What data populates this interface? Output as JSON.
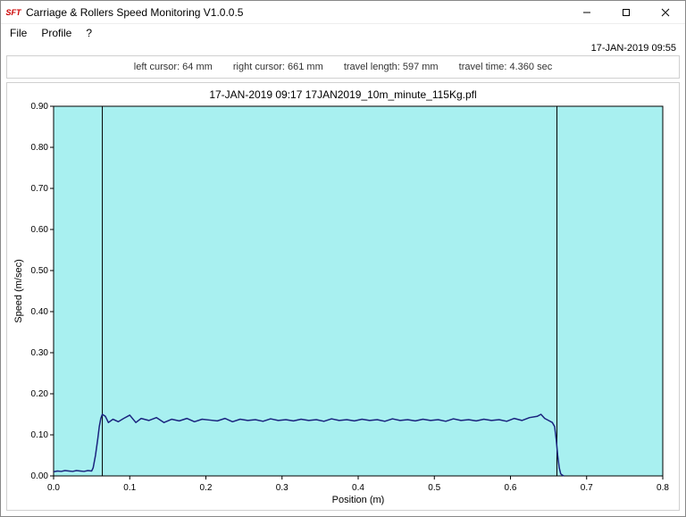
{
  "window": {
    "title": "Carriage & Rollers Speed Monitoring V1.0.0.5",
    "icon_text": "SFT"
  },
  "menu": {
    "file": "File",
    "profile": "Profile",
    "help": "?"
  },
  "status": {
    "datetime": "17-JAN-2019 09:55"
  },
  "info": {
    "left_cursor": "left cursor: 64 mm",
    "right_cursor": "right cursor: 661 mm",
    "travel_length": "travel length: 597 mm",
    "travel_time": "travel time: 4.360 sec"
  },
  "chart": {
    "type": "line",
    "title": "17-JAN-2019 09:17 17JAN2019_10m_minute_115Kg.pfl",
    "xlabel": "Position (m)",
    "ylabel": "Speed (m/sec)",
    "xlim": [
      0.0,
      0.8
    ],
    "ylim": [
      0.0,
      0.9
    ],
    "xtick_step": 0.1,
    "ytick_step": 0.1,
    "xticks": [
      "0.0",
      "0.1",
      "0.2",
      "0.3",
      "0.4",
      "0.5",
      "0.6",
      "0.7",
      "0.8"
    ],
    "yticks": [
      "0.00",
      "0.10",
      "0.20",
      "0.30",
      "0.40",
      "0.50",
      "0.60",
      "0.70",
      "0.80",
      "0.90"
    ],
    "plot_bg": "#a8f0f0",
    "axis_color": "#000000",
    "tick_color": "#000000",
    "line_color": "#1a237e",
    "line_width": 1.5,
    "cursor_color": "#000000",
    "cursor_left_x": 0.064,
    "cursor_right_x": 0.661,
    "label_fontsize": 11,
    "tick_fontsize": 10,
    "series": [
      [
        0.0,
        0.01
      ],
      [
        0.005,
        0.012
      ],
      [
        0.01,
        0.011
      ],
      [
        0.015,
        0.013
      ],
      [
        0.02,
        0.012
      ],
      [
        0.025,
        0.011
      ],
      [
        0.03,
        0.013
      ],
      [
        0.035,
        0.012
      ],
      [
        0.04,
        0.011
      ],
      [
        0.045,
        0.013
      ],
      [
        0.05,
        0.012
      ],
      [
        0.052,
        0.02
      ],
      [
        0.055,
        0.05
      ],
      [
        0.058,
        0.09
      ],
      [
        0.06,
        0.12
      ],
      [
        0.062,
        0.14
      ],
      [
        0.064,
        0.15
      ],
      [
        0.068,
        0.145
      ],
      [
        0.072,
        0.13
      ],
      [
        0.078,
        0.138
      ],
      [
        0.085,
        0.132
      ],
      [
        0.092,
        0.14
      ],
      [
        0.1,
        0.148
      ],
      [
        0.108,
        0.13
      ],
      [
        0.115,
        0.14
      ],
      [
        0.125,
        0.135
      ],
      [
        0.135,
        0.142
      ],
      [
        0.145,
        0.13
      ],
      [
        0.155,
        0.138
      ],
      [
        0.165,
        0.134
      ],
      [
        0.175,
        0.14
      ],
      [
        0.185,
        0.132
      ],
      [
        0.195,
        0.138
      ],
      [
        0.205,
        0.136
      ],
      [
        0.215,
        0.134
      ],
      [
        0.225,
        0.14
      ],
      [
        0.235,
        0.132
      ],
      [
        0.245,
        0.138
      ],
      [
        0.255,
        0.135
      ],
      [
        0.265,
        0.137
      ],
      [
        0.275,
        0.133
      ],
      [
        0.285,
        0.139
      ],
      [
        0.295,
        0.135
      ],
      [
        0.305,
        0.137
      ],
      [
        0.315,
        0.134
      ],
      [
        0.325,
        0.138
      ],
      [
        0.335,
        0.135
      ],
      [
        0.345,
        0.137
      ],
      [
        0.355,
        0.133
      ],
      [
        0.365,
        0.139
      ],
      [
        0.375,
        0.135
      ],
      [
        0.385,
        0.137
      ],
      [
        0.395,
        0.134
      ],
      [
        0.405,
        0.138
      ],
      [
        0.415,
        0.135
      ],
      [
        0.425,
        0.137
      ],
      [
        0.435,
        0.133
      ],
      [
        0.445,
        0.139
      ],
      [
        0.455,
        0.135
      ],
      [
        0.465,
        0.137
      ],
      [
        0.475,
        0.134
      ],
      [
        0.485,
        0.138
      ],
      [
        0.495,
        0.135
      ],
      [
        0.505,
        0.137
      ],
      [
        0.515,
        0.133
      ],
      [
        0.525,
        0.139
      ],
      [
        0.535,
        0.135
      ],
      [
        0.545,
        0.137
      ],
      [
        0.555,
        0.134
      ],
      [
        0.565,
        0.138
      ],
      [
        0.575,
        0.135
      ],
      [
        0.585,
        0.137
      ],
      [
        0.595,
        0.133
      ],
      [
        0.605,
        0.14
      ],
      [
        0.615,
        0.135
      ],
      [
        0.625,
        0.142
      ],
      [
        0.635,
        0.145
      ],
      [
        0.64,
        0.15
      ],
      [
        0.645,
        0.14
      ],
      [
        0.65,
        0.135
      ],
      [
        0.655,
        0.13
      ],
      [
        0.658,
        0.12
      ],
      [
        0.66,
        0.09
      ],
      [
        0.662,
        0.05
      ],
      [
        0.664,
        0.02
      ],
      [
        0.666,
        0.005
      ],
      [
        0.668,
        0.002
      ],
      [
        0.67,
        0.0
      ]
    ]
  }
}
